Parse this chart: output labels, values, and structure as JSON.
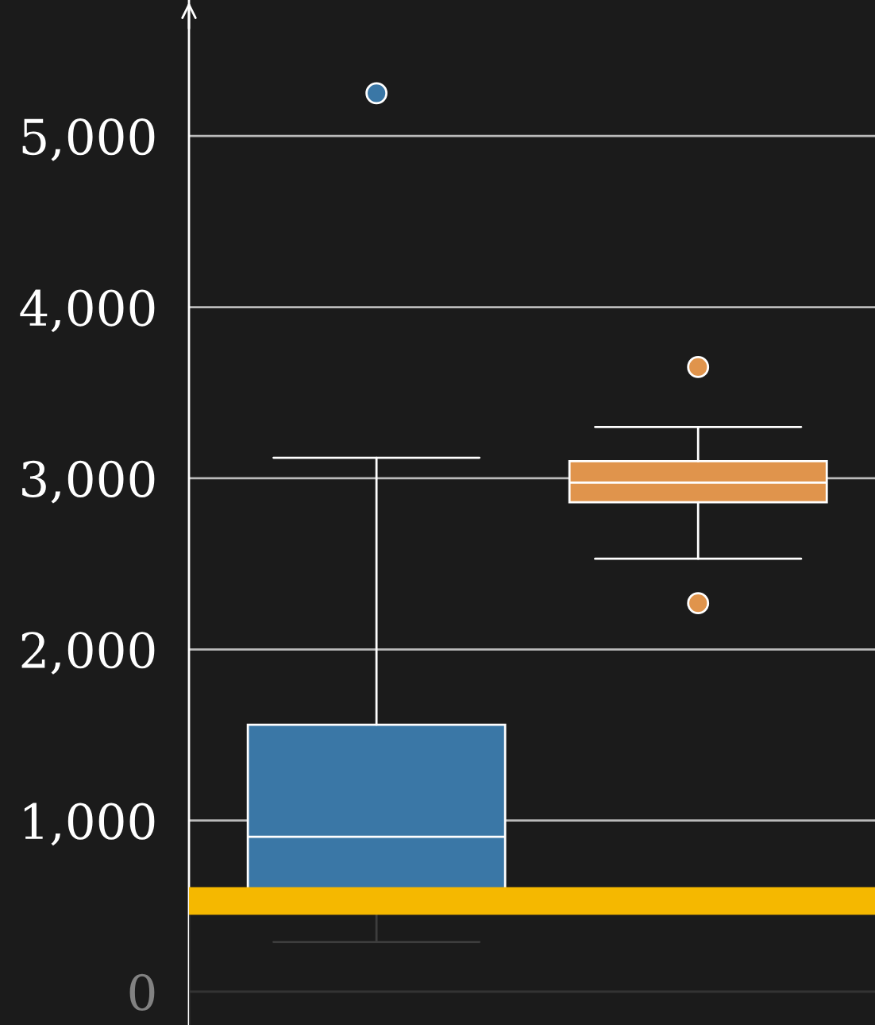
{
  "chart_data": {
    "type": "box",
    "categories": [
      null,
      null
    ],
    "boxes": [
      {
        "low": 290,
        "q1": 480,
        "median": 905,
        "q3": 1560,
        "high": 3120,
        "outliers": [
          5250
        ]
      },
      {
        "low": 2530,
        "q1": 2860,
        "median": 2975,
        "q3": 3100,
        "high": 3300,
        "outliers": [
          3650,
          2270
        ]
      }
    ],
    "colors": [
      "#3a77a6",
      "#e0944c"
    ],
    "ylim": [
      -195,
      5795
    ],
    "yticks": [
      {
        "value": 0,
        "label": "0"
      },
      {
        "value": 1000,
        "label": "1,000"
      },
      {
        "value": 2000,
        "label": "2,000"
      },
      {
        "value": 3000,
        "label": "3,000"
      },
      {
        "value": 4000,
        "label": "4,000"
      },
      {
        "value": 5000,
        "label": "5,000"
      }
    ],
    "grid": "y",
    "tick_labels": "y",
    "ref_lines": [
      {
        "axis": "y",
        "value": 530,
        "color": "#f5b800"
      }
    ],
    "bands": [
      {
        "axis": "y",
        "from": -195,
        "to": 530,
        "color": "#1b1b1b"
      }
    ]
  }
}
